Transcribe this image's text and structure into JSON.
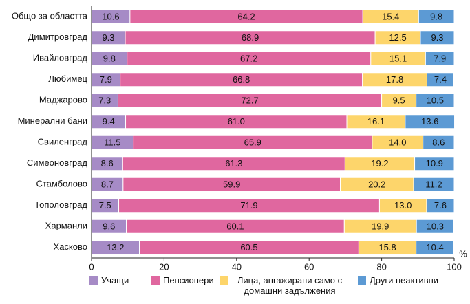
{
  "chart_data": {
    "type": "stacked_barh",
    "x_label": "%",
    "categories": [
      "Общо за областта",
      "Димитровград",
      "Ивайловград",
      "Любимец",
      "Маджарово",
      "Минерални бани",
      "Свиленград",
      "Симеоновград",
      "Стамболово",
      "Тополовград",
      "Харманли",
      "Хасково"
    ],
    "series": [
      {
        "name": "Учащи",
        "color": "#a68bc6",
        "values": [
          10.6,
          9.3,
          9.8,
          7.9,
          7.3,
          9.4,
          11.5,
          8.6,
          8.7,
          7.5,
          9.6,
          13.2
        ],
        "value_labels": [
          "10.6",
          "9.3",
          "9.8",
          "7.9",
          "7.3",
          "9.4",
          "11.5",
          "8.6",
          "8.7",
          "7.5",
          "9.6",
          "13.2"
        ]
      },
      {
        "name": "Пенсионери",
        "color": "#e0679f",
        "values": [
          64.2,
          68.9,
          67.2,
          66.8,
          72.7,
          61.0,
          65.9,
          61.3,
          59.9,
          71.9,
          60.1,
          60.5
        ],
        "value_labels": [
          "64.2",
          "68.9",
          "67.2",
          "66.8",
          "72.7",
          "61.0",
          "65.9",
          "61.3",
          "59.9",
          "71.9",
          "60.1",
          "60.5"
        ]
      },
      {
        "name": "Лица, ангажирани само с домашни задължения",
        "color": "#fdd56b",
        "values": [
          15.4,
          12.5,
          15.1,
          17.8,
          9.5,
          16.1,
          14.0,
          19.2,
          20.2,
          13.0,
          19.9,
          15.8
        ],
        "value_labels": [
          "15.4",
          "12.5",
          "15.1",
          "17.8",
          "9.5",
          "16.1",
          "14.0",
          "19.2",
          "20.2",
          "13.0",
          "19.9",
          "15.8"
        ]
      },
      {
        "name": "Други неактивни",
        "color": "#5c9ad4",
        "values": [
          9.8,
          9.3,
          7.9,
          7.4,
          10.5,
          13.6,
          8.6,
          10.9,
          11.2,
          7.6,
          10.3,
          10.4
        ],
        "value_labels": [
          "9.8",
          "9.3",
          "7.9",
          "7.4",
          "10.5",
          "13.6",
          "8.6",
          "10.9",
          "11.2",
          "7.6",
          "10.3",
          "10.4"
        ]
      }
    ],
    "xlim": [
      0,
      100
    ],
    "xticks": [
      0,
      20,
      40,
      60,
      80,
      100
    ]
  }
}
